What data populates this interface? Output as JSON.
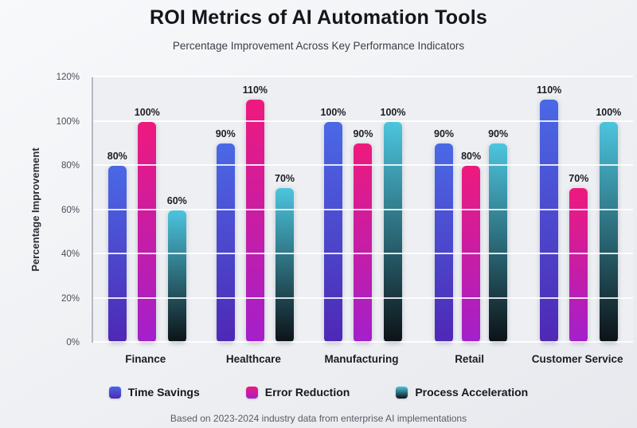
{
  "chart_data": {
    "type": "bar",
    "title": "ROI Metrics of AI Automation Tools",
    "subtitle": "Percentage Improvement Across Key Performance Indicators",
    "ylabel": "Percentage Improvement",
    "ylim": [
      0,
      120
    ],
    "ytick_step": 20,
    "yticks": [
      "0%",
      "20%",
      "40%",
      "60%",
      "80%",
      "100%",
      "120%"
    ],
    "grid": true,
    "legend_position": "bottom",
    "value_suffix": "%",
    "categories": [
      "Finance",
      "Healthcare",
      "Manufacturing",
      "Retail",
      "Customer Service"
    ],
    "series": [
      {
        "name": "Time Savings",
        "values": [
          80,
          90,
          100,
          90,
          110
        ],
        "color_top": "#4a69e6",
        "color_bottom": "#4e28b4"
      },
      {
        "name": "Error Reduction",
        "values": [
          100,
          110,
          90,
          80,
          70
        ],
        "color_top": "#ee1a7d",
        "color_bottom": "#a220cb"
      },
      {
        "name": "Process Acceleration",
        "values": [
          60,
          70,
          100,
          90,
          100
        ],
        "color_top": "#4cc5de",
        "color_bottom": "#0c1216"
      }
    ],
    "footnote": "Based on 2023-2024 industry data from enterprise AI implementations"
  }
}
